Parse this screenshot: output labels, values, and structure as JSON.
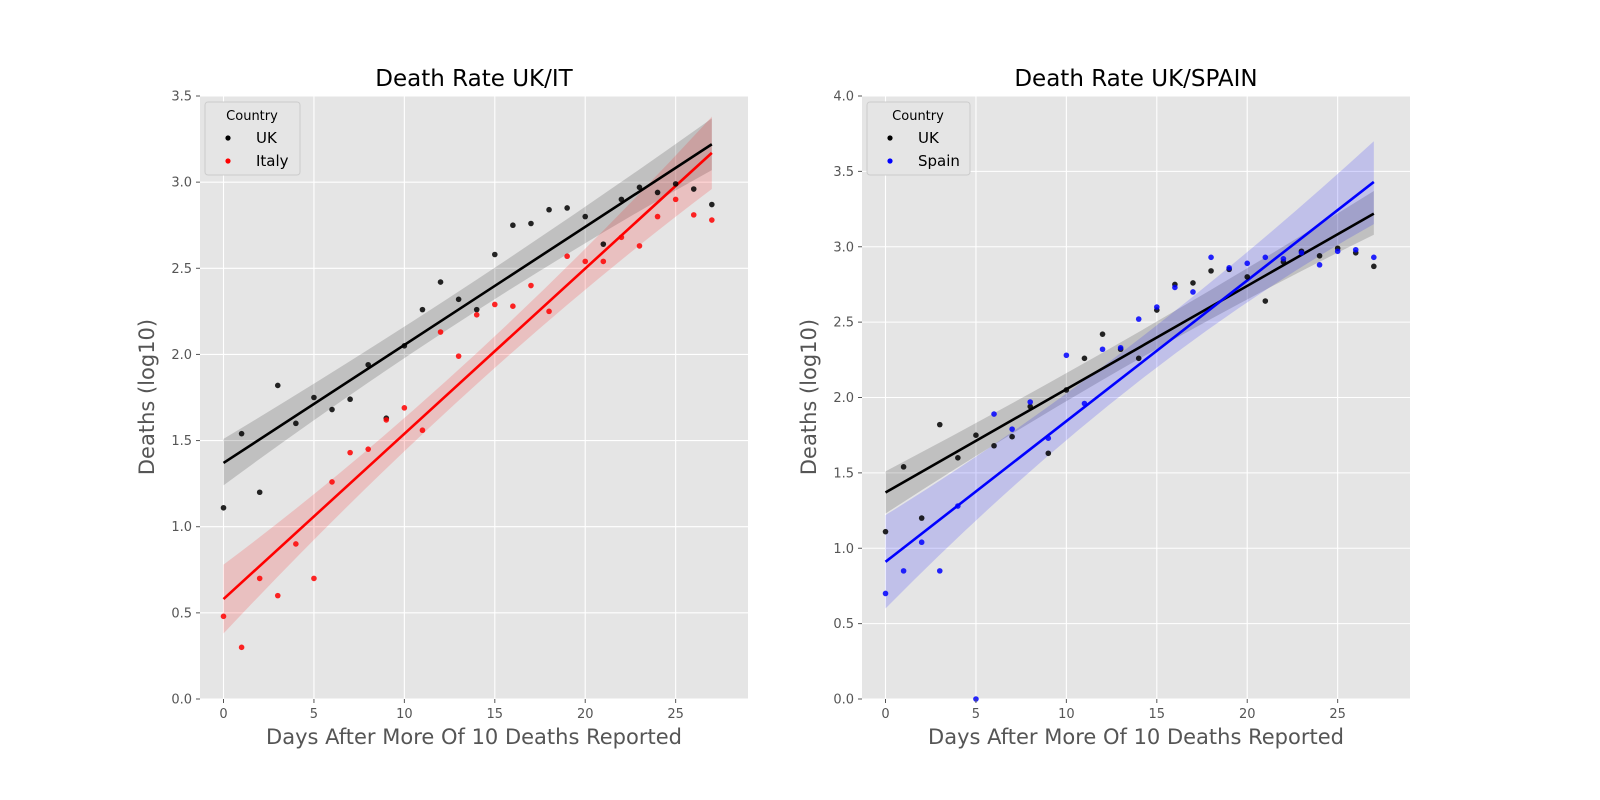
{
  "chart_data": [
    {
      "type": "scatter",
      "title": "Death Rate UK/IT",
      "xlabel": "Days After More Of 10 Deaths Reported",
      "ylabel": "Deaths (log10)",
      "xlim": [
        -1.3,
        29
      ],
      "ylim": [
        0,
        3.5
      ],
      "xticks": [
        0,
        5,
        10,
        15,
        20,
        25
      ],
      "yticks": [
        0.0,
        0.5,
        1.0,
        1.5,
        2.0,
        2.5,
        3.0,
        3.5
      ],
      "grid": true,
      "legend": {
        "title": "Country",
        "placement": "top-left"
      },
      "series": [
        {
          "name": "UK",
          "color": "#000000",
          "x": [
            0,
            1,
            2,
            3,
            4,
            5,
            6,
            7,
            8,
            9,
            10,
            11,
            12,
            13,
            14,
            15,
            16,
            17,
            18,
            19,
            20,
            21,
            22,
            23,
            24,
            25,
            26,
            27
          ],
          "y": [
            1.11,
            1.54,
            1.2,
            1.82,
            1.6,
            1.75,
            1.68,
            1.74,
            1.94,
            1.63,
            2.05,
            2.26,
            2.42,
            2.32,
            2.26,
            2.58,
            2.75,
            2.76,
            2.84,
            2.85,
            2.8,
            2.64,
            2.9,
            2.97,
            2.94,
            2.99,
            2.96,
            2.87
          ],
          "fit": {
            "y0": 1.37,
            "y1": 3.22,
            "ci_start": [
              1.24,
              1.51
            ],
            "ci_mid": [
              2.22,
              2.4
            ],
            "ci_end": [
              3.07,
              3.37
            ]
          }
        },
        {
          "name": "Italy",
          "color": "#ff0000",
          "x": [
            0,
            1,
            2,
            3,
            4,
            5,
            6,
            7,
            8,
            9,
            10,
            11,
            12,
            13,
            14,
            15,
            16,
            17,
            18,
            19,
            20,
            21,
            22,
            23,
            24,
            25,
            26,
            27
          ],
          "y": [
            0.48,
            0.3,
            0.7,
            0.6,
            0.9,
            0.7,
            1.26,
            1.43,
            1.45,
            1.62,
            1.69,
            1.56,
            2.13,
            1.99,
            2.23,
            2.29,
            2.28,
            2.4,
            2.25,
            2.57,
            2.54,
            2.54,
            2.68,
            2.63,
            2.8,
            2.9,
            2.81,
            2.78
          ],
          "fit": {
            "y0": 0.58,
            "y1": 3.17,
            "ci_start": [
              0.38,
              0.78
            ],
            "ci_mid": [
              1.78,
              1.96
            ],
            "ci_end": [
              2.96,
              3.38
            ]
          }
        }
      ]
    },
    {
      "type": "scatter",
      "title": "Death Rate UK/SPAIN",
      "xlabel": "Days After More Of 10 Deaths Reported",
      "ylabel": "Deaths (log10)",
      "xlim": [
        -1.3,
        29
      ],
      "ylim": [
        0,
        4.0
      ],
      "xticks": [
        0,
        5,
        10,
        15,
        20,
        25
      ],
      "yticks": [
        0.0,
        0.5,
        1.0,
        1.5,
        2.0,
        2.5,
        3.0,
        3.5,
        4.0
      ],
      "grid": true,
      "legend": {
        "title": "Country",
        "placement": "top-left"
      },
      "series": [
        {
          "name": "UK",
          "color": "#000000",
          "x": [
            0,
            1,
            2,
            3,
            4,
            5,
            6,
            7,
            8,
            9,
            10,
            11,
            12,
            13,
            14,
            15,
            16,
            17,
            18,
            19,
            20,
            21,
            22,
            23,
            24,
            25,
            26,
            27
          ],
          "y": [
            1.11,
            1.54,
            1.2,
            1.82,
            1.6,
            1.75,
            1.68,
            1.74,
            1.94,
            1.63,
            2.05,
            2.26,
            2.42,
            2.32,
            2.26,
            2.58,
            2.75,
            2.76,
            2.84,
            2.85,
            2.8,
            2.64,
            2.9,
            2.97,
            2.94,
            2.99,
            2.96,
            2.87
          ],
          "fit": {
            "y0": 1.37,
            "y1": 3.22,
            "ci_start": [
              1.23,
              1.51
            ],
            "ci_mid": [
              2.22,
              2.4
            ],
            "ci_end": [
              3.08,
              3.37
            ]
          }
        },
        {
          "name": "Spain",
          "color": "#0000ff",
          "x": [
            0,
            1,
            2,
            3,
            4,
            5,
            6,
            7,
            8,
            9,
            10,
            11,
            12,
            13,
            14,
            15,
            16,
            17,
            18,
            19,
            20,
            21,
            22,
            23,
            24,
            25,
            26,
            27
          ],
          "y": [
            0.7,
            0.85,
            1.04,
            0.85,
            1.28,
            0.0,
            1.89,
            1.79,
            1.97,
            1.73,
            2.28,
            1.96,
            2.32,
            2.33,
            2.52,
            2.6,
            2.73,
            2.7,
            2.93,
            2.86,
            2.89,
            2.93,
            2.92,
            2.96,
            2.88,
            2.97,
            2.98,
            2.93
          ],
          "fit": {
            "y0": 0.91,
            "y1": 3.43,
            "ci_start": [
              0.6,
              1.22
            ],
            "ci_mid": [
              2.06,
              2.34
            ],
            "ci_end": [
              3.15,
              3.7
            ]
          }
        }
      ]
    }
  ]
}
